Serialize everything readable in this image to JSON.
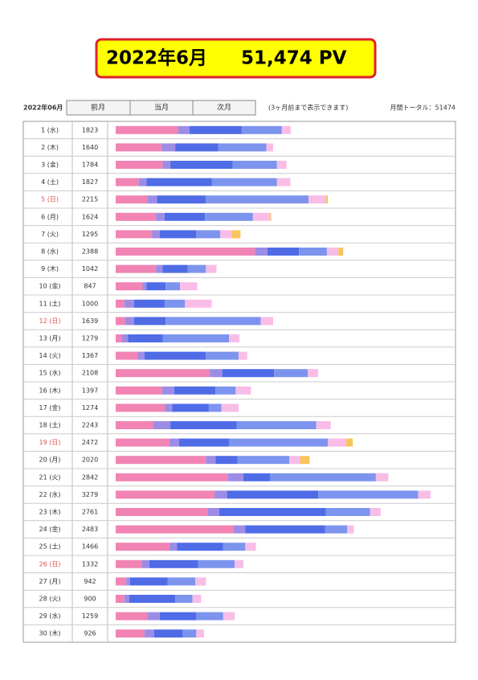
{
  "header": {
    "month": "2022年6月",
    "total_pv": "51,474 PV"
  },
  "controls": {
    "current": "2022年06月",
    "prev": "前月",
    "this": "当月",
    "next": "次月",
    "note": "(3ヶ月前まで表示できます)",
    "monthly_total": "月間トータル：51474"
  },
  "segment_colors": [
    "#f184b4",
    "#9d8ce6",
    "#4f6be6",
    "#7d94ee",
    "#f8bde6",
    "#f8c45c"
  ],
  "rows": [
    {
      "label": "1 (水)",
      "pv": 1823,
      "segments": [
        652,
        117,
        544,
        418,
        92
      ]
    },
    {
      "label": "2 (木)",
      "pv": 1640,
      "segments": [
        480,
        140,
        450,
        500,
        70
      ]
    },
    {
      "label": "3 (金)",
      "pv": 1784,
      "segments": [
        490,
        80,
        650,
        460,
        100
      ]
    },
    {
      "label": "4 (土)",
      "pv": 1827,
      "segments": [
        240,
        80,
        680,
        680,
        140
      ]
    },
    {
      "label": "5 (日)",
      "pv": 2215,
      "label_color": "#d9534f",
      "segments": [
        330,
        100,
        510,
        1070,
        180,
        20
      ]
    },
    {
      "label": "6 (月)",
      "pv": 1624,
      "segments": [
        420,
        90,
        420,
        500,
        180,
        10
      ]
    },
    {
      "label": "7 (火)",
      "pv": 1295,
      "segments": [
        380,
        80,
        380,
        250,
        120,
        90
      ]
    },
    {
      "label": "8 (水)",
      "pv": 2388,
      "segments": [
        1450,
        130,
        330,
        290,
        120,
        50
      ]
    },
    {
      "label": "9 (木)",
      "pv": 1042,
      "segments": [
        420,
        70,
        260,
        190,
        110
      ]
    },
    {
      "label": "10 (金)",
      "pv": 847,
      "segments": [
        280,
        40,
        200,
        150,
        180
      ]
    },
    {
      "label": "11 (土)",
      "pv": 1000,
      "segments": [
        90,
        100,
        320,
        210,
        280
      ]
    },
    {
      "label": "12 (日)",
      "pv": 1639,
      "label_color": "#d9534f",
      "segments": [
        100,
        90,
        330,
        990,
        130
      ]
    },
    {
      "label": "13 (月)",
      "pv": 1279,
      "segments": [
        60,
        70,
        360,
        690,
        110
      ]
    },
    {
      "label": "14 (火)",
      "pv": 1367,
      "segments": [
        230,
        70,
        640,
        340,
        90
      ]
    },
    {
      "label": "15 (水)",
      "pv": 2108,
      "segments": [
        980,
        130,
        540,
        350,
        110
      ]
    },
    {
      "label": "16 (木)",
      "pv": 1397,
      "segments": [
        480,
        130,
        430,
        210,
        160
      ]
    },
    {
      "label": "17 (金)",
      "pv": 1274,
      "segments": [
        510,
        80,
        380,
        130,
        180
      ]
    },
    {
      "label": "18 (土)",
      "pv": 2243,
      "segments": [
        390,
        180,
        690,
        830,
        150
      ]
    },
    {
      "label": "19 (日)",
      "pv": 2472,
      "label_color": "#d9534f",
      "segments": [
        560,
        100,
        520,
        1030,
        190,
        70
      ]
    },
    {
      "label": "20 (月)",
      "pv": 2020,
      "segments": [
        940,
        100,
        230,
        540,
        110,
        100
      ]
    },
    {
      "label": "21 (火)",
      "pv": 2842,
      "segments": [
        1170,
        160,
        280,
        1100,
        130
      ]
    },
    {
      "label": "22 (水)",
      "pv": 3279,
      "segments": [
        1030,
        130,
        950,
        1040,
        130
      ]
    },
    {
      "label": "23 (木)",
      "pv": 2761,
      "segments": [
        960,
        120,
        1110,
        460,
        110
      ]
    },
    {
      "label": "24 (金)",
      "pv": 2483,
      "segments": [
        1230,
        120,
        830,
        230,
        70
      ]
    },
    {
      "label": "25 (土)",
      "pv": 1466,
      "segments": [
        560,
        80,
        480,
        230,
        110
      ]
    },
    {
      "label": "26 (日)",
      "pv": 1332,
      "label_color": "#d9534f",
      "segments": [
        270,
        80,
        510,
        380,
        90
      ]
    },
    {
      "label": "27 (月)",
      "pv": 942,
      "segments": [
        110,
        40,
        390,
        290,
        110
      ]
    },
    {
      "label": "28 (火)",
      "pv": 900,
      "segments": [
        90,
        50,
        480,
        180,
        90
      ]
    },
    {
      "label": "29 (水)",
      "pv": 1259,
      "segments": [
        330,
        130,
        380,
        280,
        120
      ]
    },
    {
      "label": "30 (木)",
      "pv": 926,
      "segments": [
        300,
        100,
        300,
        140,
        80
      ]
    }
  ]
}
